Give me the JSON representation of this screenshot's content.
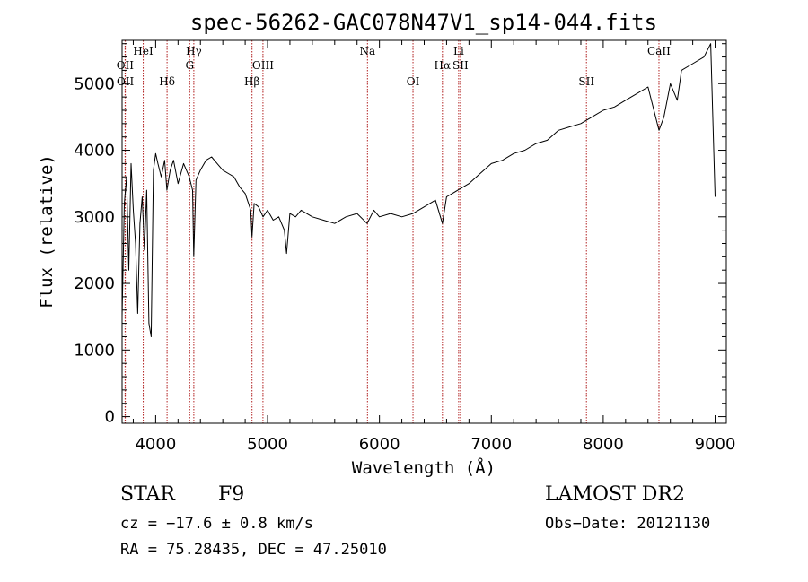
{
  "chart_data": {
    "type": "line",
    "title": "spec-56262-GAC078N47V1_sp14-044.fits",
    "xlabel": "Wavelength (Å)",
    "ylabel": "Flux (relative)",
    "xlim": [
      3700,
      9100
    ],
    "ylim": [
      -100,
      5650
    ],
    "xticks": [
      4000,
      5000,
      6000,
      7000,
      8000,
      9000
    ],
    "yticks": [
      0,
      1000,
      2000,
      3000,
      4000,
      5000
    ],
    "grid": false,
    "line_color": "#000000",
    "marker_color": "#b22222",
    "series": [
      {
        "x": [
          3700,
          3720,
          3740,
          3760,
          3780,
          3800,
          3820,
          3840,
          3860,
          3880,
          3900,
          3920,
          3940,
          3960,
          3980,
          4000,
          4020,
          4050,
          4080,
          4100,
          4130,
          4160,
          4200,
          4250,
          4300,
          4330,
          4340,
          4360,
          4400,
          4450,
          4500,
          4550,
          4600,
          4650,
          4700,
          4750,
          4800,
          4850,
          4861,
          4880,
          4920,
          4960,
          5000,
          5050,
          5100,
          5150,
          5170,
          5200,
          5250,
          5300,
          5400,
          5500,
          5600,
          5700,
          5800,
          5890,
          5950,
          6000,
          6100,
          6200,
          6300,
          6400,
          6500,
          6563,
          6600,
          6650,
          6700,
          6800,
          6900,
          7000,
          7100,
          7200,
          7300,
          7400,
          7500,
          7600,
          7700,
          7800,
          7900,
          8000,
          8100,
          8200,
          8300,
          8400,
          8498,
          8542,
          8600,
          8662,
          8700,
          8800,
          8900,
          8960,
          9000
        ],
        "y": [
          1500,
          3200,
          3600,
          2200,
          3800,
          3100,
          2600,
          1550,
          2900,
          3300,
          2500,
          3400,
          1400,
          1200,
          3700,
          3950,
          3800,
          3600,
          3850,
          3400,
          3700,
          3850,
          3500,
          3800,
          3600,
          3400,
          2400,
          3550,
          3700,
          3850,
          3900,
          3800,
          3700,
          3650,
          3600,
          3450,
          3350,
          3100,
          2700,
          3200,
          3150,
          3000,
          3100,
          2950,
          3000,
          2800,
          2450,
          3050,
          3000,
          3100,
          3000,
          2950,
          2900,
          3000,
          3050,
          2900,
          3100,
          3000,
          3050,
          3000,
          3050,
          3150,
          3250,
          2900,
          3300,
          3350,
          3400,
          3500,
          3650,
          3800,
          3850,
          3950,
          4000,
          4100,
          4150,
          4300,
          4350,
          4400,
          4500,
          4600,
          4650,
          4750,
          4850,
          4950,
          4300,
          4500,
          5000,
          4750,
          5200,
          5300,
          5400,
          5600,
          3300
        ]
      }
    ],
    "lines": [
      {
        "label": "OII",
        "x": 3727,
        "row": 2
      },
      {
        "label": "OII",
        "x": 3729,
        "row": 3
      },
      {
        "label": "HeI",
        "x": 3889,
        "row": 1
      },
      {
        "label": "Hδ",
        "x": 4102,
        "row": 3
      },
      {
        "label": "G",
        "x": 4304,
        "row": 2
      },
      {
        "label": "Hγ",
        "x": 4341,
        "row": 1
      },
      {
        "label": "Hβ",
        "x": 4861,
        "row": 3
      },
      {
        "label": "OIII",
        "x": 4959,
        "row": 2
      },
      {
        "label": "Na",
        "x": 5893,
        "row": 1
      },
      {
        "label": "OI",
        "x": 6300,
        "row": 3
      },
      {
        "label": "Hα",
        "x": 6563,
        "row": 2
      },
      {
        "label": "Li",
        "x": 6708,
        "row": 1
      },
      {
        "label": "SII",
        "x": 6724,
        "row": 2
      },
      {
        "label": "SII",
        "x": 7850,
        "row": 3
      },
      {
        "label": "CaII",
        "x": 8498,
        "row": 1
      }
    ]
  },
  "info": {
    "class": "STAR",
    "subclass": "F9",
    "cz": "cz = −17.6 ± 0.8 km/s",
    "radec": "RA =  75.28435, DEC =  47.25010",
    "survey": "LAMOST DR2",
    "obsdate": "Obs−Date: 20121130"
  }
}
